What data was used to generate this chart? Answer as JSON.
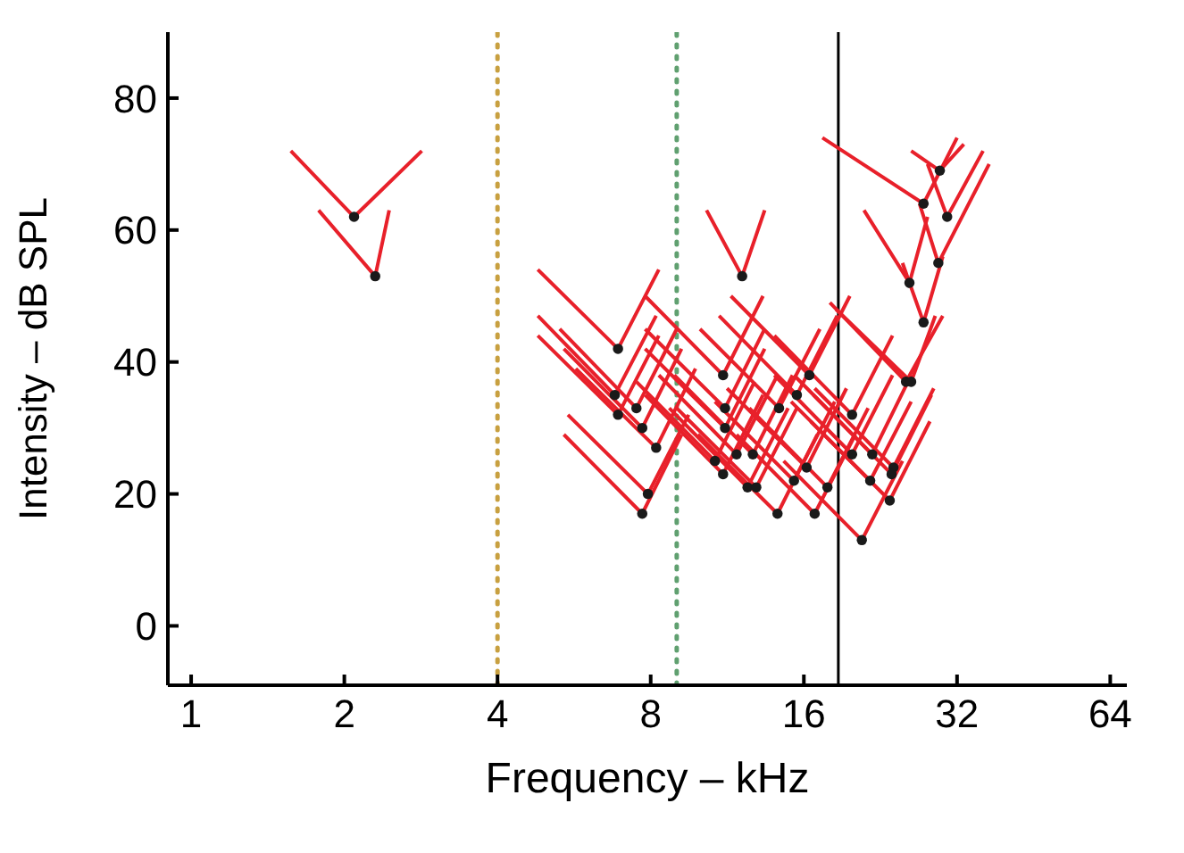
{
  "chart_data": {
    "type": "line",
    "xlabel": "Frequency – kHz",
    "ylabel": "Intensity – dB SPL",
    "log": "x",
    "xlim": [
      0.9,
      69
    ],
    "xticks": [
      1,
      2,
      4,
      8,
      16,
      32,
      64
    ],
    "ylim": [
      -9,
      90
    ],
    "yticks": [
      0,
      20,
      40,
      60,
      80
    ],
    "ref_lines": [
      {
        "axis": "x",
        "value": 4,
        "color": "#c8a040",
        "line_style": "dotted"
      },
      {
        "axis": "x",
        "value": 9,
        "color": "#60a070",
        "line_style": "dotted"
      },
      {
        "axis": "x",
        "value": 18.7,
        "color": "#000000",
        "line_style": "solid"
      }
    ],
    "series": [
      {
        "color": "#e8202a",
        "x": [
          1.57,
          2.09,
          2.84
        ],
        "values": [
          72,
          62,
          72
        ]
      },
      {
        "color": "#e8202a",
        "x": [
          1.78,
          2.3,
          2.45
        ],
        "values": [
          63,
          53,
          63
        ]
      },
      {
        "color": "#e8202a",
        "x": [
          10.3,
          12.1,
          13.4
        ],
        "values": [
          63,
          53,
          63
        ]
      },
      {
        "color": "#e8202a",
        "x": [
          4.8,
          6.9,
          8.3
        ],
        "values": [
          54,
          42,
          54
        ]
      },
      {
        "color": "#e8202a",
        "x": [
          7.8,
          11.1,
          13.3
        ],
        "values": [
          50,
          38,
          50
        ]
      },
      {
        "color": "#e8202a",
        "x": [
          11.5,
          16.4,
          19.7
        ],
        "values": [
          50,
          38,
          50
        ]
      },
      {
        "color": "#e8202a",
        "x": [
          4.8,
          6.8,
          8.2
        ],
        "values": [
          47,
          35,
          47
        ]
      },
      {
        "color": "#e8202a",
        "x": [
          5.3,
          7.5,
          9
        ],
        "values": [
          45,
          33,
          45
        ]
      },
      {
        "color": "#e8202a",
        "x": [
          4.8,
          6.9,
          8.3
        ],
        "values": [
          44,
          32,
          44
        ]
      },
      {
        "color": "#e8202a",
        "x": [
          7.8,
          11.2,
          13.4
        ],
        "values": [
          45,
          33,
          45
        ]
      },
      {
        "color": "#e8202a",
        "x": [
          10,
          14.3,
          17.2
        ],
        "values": [
          45,
          33,
          45
        ]
      },
      {
        "color": "#e8202a",
        "x": [
          10.9,
          15.5,
          18.6
        ],
        "values": [
          47,
          35,
          47
        ]
      },
      {
        "color": "#e8202a",
        "x": [
          5.4,
          7.7,
          9.2
        ],
        "values": [
          42,
          30,
          42
        ]
      },
      {
        "color": "#e8202a",
        "x": [
          7.8,
          11.2,
          13.4
        ],
        "values": [
          42,
          30,
          42
        ]
      },
      {
        "color": "#e8202a",
        "x": [
          5.7,
          8.2,
          9.8
        ],
        "values": [
          39,
          27,
          39
        ]
      },
      {
        "color": "#e8202a",
        "x": [
          7.5,
          10.7,
          12.8
        ],
        "values": [
          37,
          25,
          37
        ]
      },
      {
        "color": "#e8202a",
        "x": [
          7.8,
          11.1,
          13.3
        ],
        "values": [
          35,
          23,
          35
        ]
      },
      {
        "color": "#e8202a",
        "x": [
          8.3,
          11.8,
          14.2
        ],
        "values": [
          38,
          26,
          38
        ]
      },
      {
        "color": "#e8202a",
        "x": [
          8.9,
          12.7,
          15.2
        ],
        "values": [
          38,
          26,
          38
        ]
      },
      {
        "color": "#e8202a",
        "x": [
          8.7,
          12.4,
          14.9
        ],
        "values": [
          33,
          21,
          33
        ]
      },
      {
        "color": "#e8202a",
        "x": [
          9,
          12.9,
          15.5
        ],
        "values": [
          33,
          21,
          33
        ]
      },
      {
        "color": "#e8202a",
        "x": [
          5.5,
          7.9,
          9.5
        ],
        "values": [
          32,
          20,
          32
        ]
      },
      {
        "color": "#e8202a",
        "x": [
          5.4,
          7.7,
          9.2
        ],
        "values": [
          29,
          17,
          29
        ]
      },
      {
        "color": "#e8202a",
        "x": [
          9.9,
          14.2,
          17
        ],
        "values": [
          29,
          17,
          29
        ]
      },
      {
        "color": "#e8202a",
        "x": [
          11.8,
          16.8,
          20.2
        ],
        "values": [
          29,
          17,
          29
        ]
      },
      {
        "color": "#e8202a",
        "x": [
          10.7,
          15.3,
          18.4
        ],
        "values": [
          34,
          22,
          34
        ]
      },
      {
        "color": "#e8202a",
        "x": [
          11.3,
          16.2,
          19.4
        ],
        "values": [
          36,
          24,
          36
        ]
      },
      {
        "color": "#e8202a",
        "x": [
          12.5,
          17.8,
          21.4
        ],
        "values": [
          33,
          21,
          33
        ]
      },
      {
        "color": "#e8202a",
        "x": [
          26,
          29.6,
          33
        ],
        "values": [
          72,
          69,
          73
        ]
      },
      {
        "color": "#e8202a",
        "x": [
          17.4,
          27.5,
          32
        ],
        "values": [
          74,
          64,
          74
        ]
      },
      {
        "color": "#e8202a",
        "x": [
          28,
          30.6,
          36
        ],
        "values": [
          70,
          62,
          72
        ]
      },
      {
        "color": "#e8202a",
        "x": [
          27,
          29.4,
          37
        ],
        "values": [
          64,
          55,
          70
        ]
      },
      {
        "color": "#e8202a",
        "x": [
          21,
          25.8,
          28
        ],
        "values": [
          63,
          52,
          62
        ]
      },
      {
        "color": "#e8202a",
        "x": [
          25,
          27.5,
          30
        ],
        "values": [
          55,
          46,
          56
        ]
      },
      {
        "color": "#e8202a",
        "x": [
          18,
          25.4,
          30
        ],
        "values": [
          49,
          37,
          47
        ]
      },
      {
        "color": "#e8202a",
        "x": [
          18.5,
          26,
          29
        ],
        "values": [
          48,
          37,
          47
        ]
      },
      {
        "color": "#e8202a",
        "x": [
          14,
          19.9,
          23.9
        ],
        "values": [
          44,
          32,
          44
        ]
      },
      {
        "color": "#e8202a",
        "x": [
          15.3,
          21.8,
          26
        ],
        "values": [
          38,
          26,
          38
        ]
      },
      {
        "color": "#e8202a",
        "x": [
          14,
          19.9,
          23.9
        ],
        "values": [
          38,
          26,
          38
        ]
      },
      {
        "color": "#e8202a",
        "x": [
          16.8,
          24,
          28.8
        ],
        "values": [
          36,
          24,
          36
        ]
      },
      {
        "color": "#e8202a",
        "x": [
          16.7,
          23.8,
          28.5
        ],
        "values": [
          35,
          23,
          35
        ]
      },
      {
        "color": "#e8202a",
        "x": [
          15.1,
          21.6,
          26
        ],
        "values": [
          34,
          22,
          34
        ]
      },
      {
        "color": "#e8202a",
        "x": [
          16.5,
          23.6,
          28.3
        ],
        "values": [
          31,
          19,
          31
        ]
      },
      {
        "color": "#e8202a",
        "x": [
          14.6,
          20.8,
          25
        ],
        "values": [
          25,
          13,
          25
        ]
      },
      {
        "type": "scatter",
        "marker": "circle",
        "color": "#1a1a1a",
        "x": [
          2.09,
          2.3,
          12.1,
          6.9,
          11.1,
          16.4,
          6.8,
          7.5,
          6.9,
          11.2,
          14.3,
          15.5,
          7.7,
          11.2,
          8.2,
          10.7,
          11.1,
          11.8,
          12.7,
          12.4,
          12.9,
          7.9,
          7.7,
          14.2,
          16.8,
          15.3,
          16.2,
          17.8,
          29.6,
          27.5,
          30.6,
          29.4,
          25.8,
          27.5,
          25.4,
          26,
          19.9,
          21.8,
          19.9,
          24,
          23.8,
          21.6,
          23.6,
          20.8
        ],
        "values": [
          62,
          53,
          53,
          42,
          38,
          38,
          35,
          33,
          32,
          33,
          33,
          35,
          30,
          30,
          27,
          25,
          23,
          26,
          26,
          21,
          21,
          20,
          17,
          17,
          17,
          22,
          24,
          21,
          69,
          64,
          62,
          55,
          52,
          46,
          37,
          37,
          32,
          26,
          26,
          24,
          23,
          22,
          19,
          13
        ]
      }
    ]
  }
}
